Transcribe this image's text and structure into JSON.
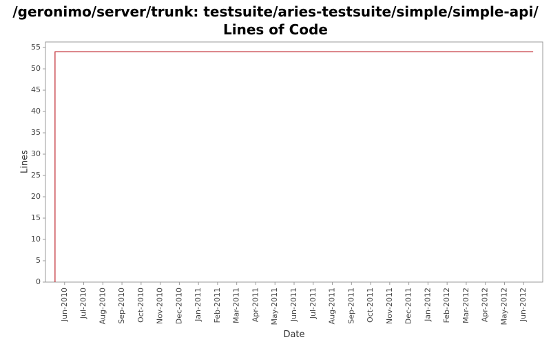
{
  "chart_data": {
    "type": "line",
    "title": "/geronimo/server/trunk: testsuite/aries-testsuite/simple/simple-api/ Lines of Code",
    "x_label": "Date",
    "y_label": "Lines",
    "series": [
      {
        "name": "Lines",
        "color": "#c0262e",
        "x": [
          "May-2010",
          "May-2010",
          "Jun-2012"
        ],
        "values": [
          0,
          54,
          54
        ]
      }
    ],
    "xlim": [
      "May-2010",
      "Jul-2012"
    ],
    "xticks": [
      "Jun-2010",
      "Jul-2010",
      "Aug-2010",
      "Sep-2010",
      "Oct-2010",
      "Nov-2010",
      "Dec-2010",
      "Jan-2011",
      "Feb-2011",
      "Mar-2011",
      "Apr-2011",
      "May-2011",
      "Jun-2011",
      "Jul-2011",
      "Aug-2011",
      "Sep-2011",
      "Oct-2011",
      "Nov-2011",
      "Dec-2011",
      "Jan-2012",
      "Feb-2012",
      "Mar-2012",
      "Apr-2012",
      "May-2012",
      "Jun-2012"
    ],
    "ylim": [
      0,
      56.3
    ],
    "yticks": [
      0,
      5,
      10,
      15,
      20,
      25,
      30,
      35,
      40,
      45,
      50,
      55
    ]
  }
}
